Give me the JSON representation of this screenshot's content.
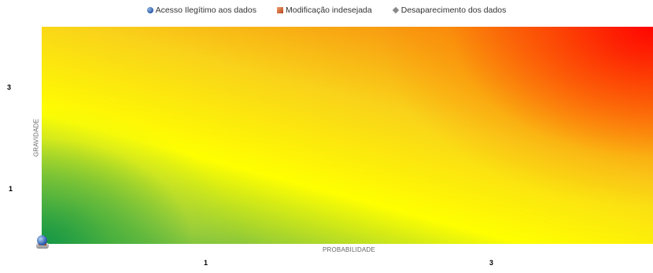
{
  "chart_data": {
    "type": "scatter",
    "legend": {
      "placement": "top-center",
      "items": [
        {
          "label": "Acesso Ilegítimo aos dados",
          "marker": "circle",
          "color": "#2a5aa8"
        },
        {
          "label": "Modificação indesejada",
          "marker": "square",
          "color": "#b8451a"
        },
        {
          "label": "Desaparecimento dos dados",
          "marker": "diamond",
          "color": "#8a8a8a"
        }
      ]
    },
    "xlabel": "PROBABILIDADE",
    "ylabel": "GRAVIDADE",
    "x_ticks": [
      "1",
      "3"
    ],
    "y_ticks": [
      "3",
      "1"
    ],
    "series": [
      {
        "name": "Acesso Ilegítimo aos dados",
        "x": [
          0
        ],
        "y": [
          0
        ]
      },
      {
        "name": "Modificação indesejada",
        "x": [
          0
        ],
        "y": [
          0
        ]
      },
      {
        "name": "Desaparecimento dos dados",
        "x": [
          0
        ],
        "y": [
          0
        ]
      }
    ],
    "background": "heatmap gradient from green (bottom-left) through yellow to red (top-right)",
    "grid": false
  }
}
